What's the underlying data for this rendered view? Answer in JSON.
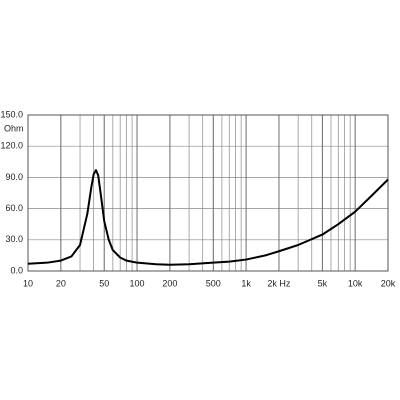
{
  "chart_data": {
    "type": "line",
    "y_unit": "Ohm",
    "x_scale": "log",
    "grid": true,
    "minor_grid": true,
    "x": [
      10,
      15,
      20,
      25,
      30,
      35,
      38,
      40,
      42,
      44,
      47,
      50,
      55,
      60,
      70,
      80,
      100,
      150,
      200,
      300,
      500,
      700,
      1000,
      1500,
      2000,
      3000,
      5000,
      7000,
      10000,
      15000,
      20000
    ],
    "series": [
      {
        "color": "#000000",
        "values": [
          7,
          8,
          10,
          14,
          25,
          55,
          80,
          93,
          97,
          92,
          70,
          48,
          30,
          20,
          13,
          10,
          8,
          6.5,
          6,
          6.5,
          8,
          9,
          11,
          15,
          19,
          25,
          35,
          45,
          57,
          75,
          88
        ]
      }
    ],
    "xlim": [
      10,
      20000
    ],
    "xticks": [
      10,
      20,
      50,
      100,
      200,
      500,
      {
        "value": 1000,
        "label": "1k"
      },
      {
        "value": 2000,
        "label": "2k Hz"
      },
      {
        "value": 5000,
        "label": "5k"
      },
      {
        "value": 10000,
        "label": "10k"
      },
      {
        "value": 20000,
        "label": "20k"
      }
    ],
    "ylim": [
      0,
      150
    ],
    "yticks": [
      {
        "value": 0,
        "label": "0.0"
      },
      {
        "value": 30,
        "label": "30.0"
      },
      {
        "value": 60,
        "label": "60.0"
      },
      {
        "value": 90,
        "label": "90.0"
      },
      {
        "value": 120,
        "label": "120.0"
      },
      {
        "value": 150,
        "label": "150.0"
      }
    ]
  }
}
